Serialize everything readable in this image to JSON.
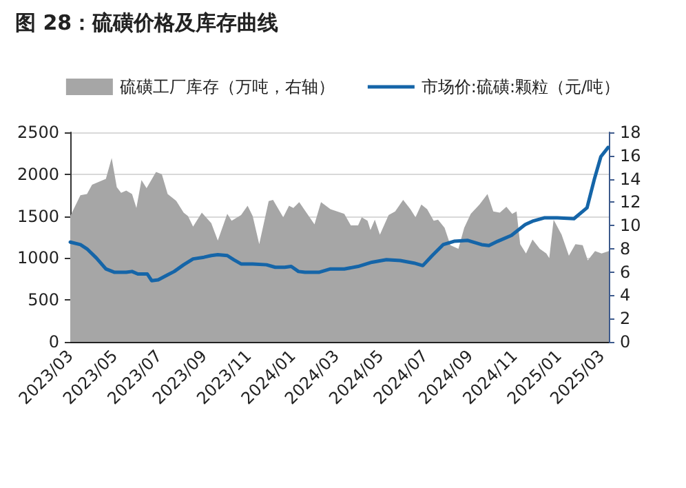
{
  "chart_data": {
    "type": "line",
    "title": "图 28：硫磺价格及库存曲线",
    "xlim": [
      "2023-03-01",
      "2025-03-11"
    ],
    "xticks": [
      {
        "value": "2023-03-01",
        "label": "2023/03"
      },
      {
        "value": "2023-05-01",
        "label": "2023/05"
      },
      {
        "value": "2023-07-01",
        "label": "2023/07"
      },
      {
        "value": "2023-09-01",
        "label": "2023/09"
      },
      {
        "value": "2023-11-01",
        "label": "2023/11"
      },
      {
        "value": "2024-01-01",
        "label": "2024/01"
      },
      {
        "value": "2024-03-01",
        "label": "2024/03"
      },
      {
        "value": "2024-05-01",
        "label": "2024/05"
      },
      {
        "value": "2024-07-01",
        "label": "2024/07"
      },
      {
        "value": "2024-09-01",
        "label": "2024/09"
      },
      {
        "value": "2024-11-01",
        "label": "2024/11"
      },
      {
        "value": "2025-01-01",
        "label": "2025/01"
      },
      {
        "value": "2025-03-01",
        "label": "2025/03"
      }
    ],
    "ylim": [
      0,
      2500
    ],
    "yticks": [
      0,
      500,
      1000,
      1500,
      2000,
      2500
    ],
    "y2lim": [
      0,
      18
    ],
    "y2ticks": [
      0,
      2,
      4,
      6,
      8,
      10,
      12,
      14,
      16,
      18
    ],
    "grid": "y",
    "legend": "top",
    "marker": "none",
    "line_style": "solid",
    "series": [
      {
        "name": "硫磺工厂库存（万吨，右轴）",
        "type": "area",
        "axis": "y2",
        "color": "#a6a6a6",
        "x": [
          "2023-03-01",
          "2023-03-15",
          "2023-03-24",
          "2023-03-31",
          "2023-04-19",
          "2023-04-27",
          "2023-05-04",
          "2023-05-10",
          "2023-05-17",
          "2023-05-25",
          "2023-05-31",
          "2023-06-07",
          "2023-06-14",
          "2023-06-27",
          "2023-07-05",
          "2023-07-13",
          "2023-07-25",
          "2023-08-04",
          "2023-08-10",
          "2023-08-17",
          "2023-08-29",
          "2023-09-11",
          "2023-09-20",
          "2023-10-03",
          "2023-10-09",
          "2023-10-22",
          "2023-10-31",
          "2023-11-07",
          "2023-11-16",
          "2023-11-29",
          "2023-12-05",
          "2023-12-19",
          "2023-12-27",
          "2024-01-02",
          "2024-01-10",
          "2024-01-31",
          "2024-02-09",
          "2024-02-22",
          "2024-03-12",
          "2024-03-21",
          "2024-03-31",
          "2024-04-05",
          "2024-04-13",
          "2024-04-17",
          "2024-04-23",
          "2024-04-30",
          "2024-05-12",
          "2024-05-21",
          "2024-06-01",
          "2024-06-11",
          "2024-06-18",
          "2024-06-26",
          "2024-07-04",
          "2024-07-13",
          "2024-07-19",
          "2024-07-28",
          "2024-08-05",
          "2024-08-16",
          "2024-08-24",
          "2024-09-02",
          "2024-09-14",
          "2024-09-25",
          "2024-10-03",
          "2024-10-12",
          "2024-10-21",
          "2024-10-29",
          "2024-11-04",
          "2024-11-09",
          "2024-11-17",
          "2024-11-26",
          "2024-12-06",
          "2024-12-15",
          "2024-12-19",
          "2024-12-25",
          "2025-01-05",
          "2025-01-15",
          "2025-01-24",
          "2025-02-03",
          "2025-02-10",
          "2025-02-20",
          "2025-03-01",
          "2025-03-11"
        ],
        "values": [
          10.8,
          12.6,
          12.7,
          13.5,
          14.0,
          15.8,
          13.3,
          12.8,
          13.0,
          12.7,
          11.5,
          13.9,
          13.2,
          14.6,
          14.4,
          12.7,
          12.1,
          11.1,
          10.8,
          9.9,
          11.1,
          10.2,
          8.7,
          11.0,
          10.4,
          10.9,
          11.7,
          10.8,
          8.4,
          12.1,
          12.2,
          10.7,
          11.7,
          11.5,
          12.0,
          10.1,
          12.0,
          11.4,
          11.0,
          10.0,
          10.0,
          10.7,
          10.4,
          9.6,
          10.5,
          9.2,
          10.9,
          11.2,
          12.2,
          11.4,
          10.7,
          11.8,
          11.4,
          10.4,
          10.5,
          9.8,
          8.3,
          8.0,
          9.8,
          11.0,
          11.8,
          12.7,
          11.2,
          11.1,
          11.6,
          11.0,
          11.2,
          8.4,
          7.6,
          8.8,
          8.0,
          7.6,
          7.2,
          10.5,
          9.2,
          7.4,
          8.4,
          8.3,
          7.0,
          7.8,
          7.6,
          7.8
        ]
      },
      {
        "name": "市场价:硫磺:颗粒（元/吨）",
        "color": "#1565a8",
        "x": [
          "2023-03-01",
          "2023-03-15",
          "2023-03-24",
          "2023-04-06",
          "2023-04-19",
          "2023-05-01",
          "2023-05-17",
          "2023-05-25",
          "2023-06-02",
          "2023-06-15",
          "2023-06-21",
          "2023-06-30",
          "2023-07-13",
          "2023-07-22",
          "2023-08-04",
          "2023-08-17",
          "2023-09-01",
          "2023-09-11",
          "2023-09-20",
          "2023-10-03",
          "2023-10-12",
          "2023-10-22",
          "2023-11-07",
          "2023-11-26",
          "2023-12-08",
          "2023-12-21",
          "2023-12-30",
          "2024-01-09",
          "2024-01-18",
          "2024-02-06",
          "2024-02-22",
          "2024-03-12",
          "2024-03-31",
          "2024-04-19",
          "2024-05-09",
          "2024-05-28",
          "2024-06-16",
          "2024-06-28",
          "2024-07-11",
          "2024-07-26",
          "2024-08-10",
          "2024-08-29",
          "2024-09-17",
          "2024-09-27",
          "2024-10-09",
          "2024-10-28",
          "2024-11-16",
          "2024-11-26",
          "2024-12-12",
          "2024-12-30",
          "2025-01-22",
          "2025-02-09",
          "2025-02-19",
          "2025-02-28",
          "2025-03-10"
        ],
        "values": [
          1190,
          1160,
          1110,
          1000,
          870,
          830,
          830,
          840,
          810,
          810,
          730,
          740,
          800,
          840,
          920,
          990,
          1010,
          1030,
          1040,
          1030,
          980,
          930,
          930,
          920,
          890,
          890,
          900,
          840,
          830,
          830,
          870,
          870,
          900,
          950,
          980,
          970,
          940,
          910,
          1030,
          1160,
          1200,
          1210,
          1160,
          1150,
          1200,
          1270,
          1400,
          1440,
          1480,
          1480,
          1470,
          1600,
          1940,
          2210,
          2320
        ]
      }
    ]
  }
}
